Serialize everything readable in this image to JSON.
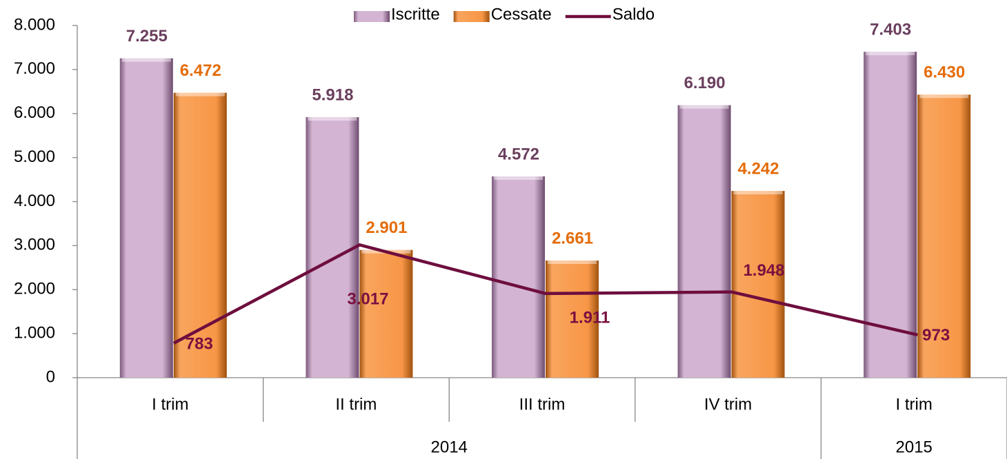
{
  "chart_data": {
    "type": "bar",
    "groups": [
      {
        "name": "2014",
        "categories": [
          "I trim",
          "II trim",
          "III trim",
          "IV trim"
        ]
      },
      {
        "name": "2015",
        "categories": [
          "I trim"
        ]
      }
    ],
    "series": [
      {
        "name": "Iscritte",
        "type": "bar",
        "color": "#d3b5d3",
        "label_color": "#6b3f5e",
        "values": [
          7255,
          5918,
          4572,
          6190,
          7403
        ],
        "value_labels": [
          "7.255",
          "5.918",
          "4.572",
          "6.190",
          "7.403"
        ]
      },
      {
        "name": "Cessate",
        "type": "bar",
        "color": "#f79646",
        "label_color": "#e46c0a",
        "values": [
          6472,
          2901,
          2661,
          4242,
          6430
        ],
        "value_labels": [
          "6.472",
          "2.901",
          "2.661",
          "4.242",
          "6.430"
        ]
      },
      {
        "name": "Saldo",
        "type": "line",
        "color": "#6e0e3e",
        "label_color": "#7a1040",
        "values": [
          783,
          3017,
          1911,
          1948,
          973
        ],
        "value_labels": [
          "783",
          "3.017",
          "1.911",
          "1.948",
          "973"
        ]
      }
    ],
    "ylim": [
      0,
      8000
    ],
    "yticks": [
      0,
      {
        "value": 1000,
        "label": "1.000"
      },
      {
        "value": 2000,
        "label": "2.000"
      },
      {
        "value": 3000,
        "label": "3.000"
      },
      {
        "value": 4000,
        "label": "4.000"
      },
      {
        "value": 5000,
        "label": "5.000"
      },
      {
        "value": 6000,
        "label": "6.000"
      },
      {
        "value": 7000,
        "label": "7.000"
      },
      {
        "value": 8000,
        "label": "8.000"
      }
    ],
    "legend": "top"
  }
}
